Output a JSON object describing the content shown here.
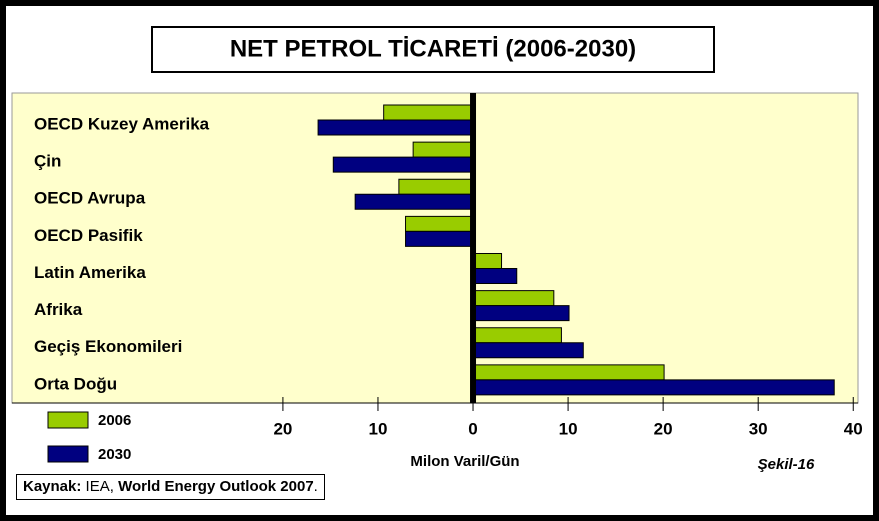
{
  "chart_data": {
    "type": "barh",
    "title": "NET PETROL TİCARETİ (2006-2030)",
    "categories": [
      "OECD Kuzey Amerika",
      "Çin",
      "OECD Avrupa",
      "OECD Pasifik",
      "Latin Amerika",
      "Afrika",
      "Geçiş Ekonomileri",
      "Orta Doğu"
    ],
    "series": [
      {
        "name": "2006",
        "color": "#99cc00",
        "values": [
          -9.4,
          -6.3,
          -7.8,
          -7.1,
          3.0,
          8.5,
          9.3,
          20.1
        ]
      },
      {
        "name": "2030",
        "color": "#000080",
        "values": [
          -16.3,
          -14.7,
          -12.4,
          -7.1,
          4.6,
          10.1,
          11.6,
          38.0
        ]
      }
    ],
    "xlim": [
      -48.5,
      40.5
    ],
    "xticks": [
      {
        "value": -20,
        "label": "20"
      },
      {
        "value": -10,
        "label": "10"
      },
      0,
      10,
      20,
      30,
      40
    ],
    "x_label": "Milon Varil/Gün",
    "figure_label": "Şekil-16",
    "source": [
      "Kaynak:",
      "IEA,",
      "World Energy Outlook 2007",
      "."
    ]
  }
}
